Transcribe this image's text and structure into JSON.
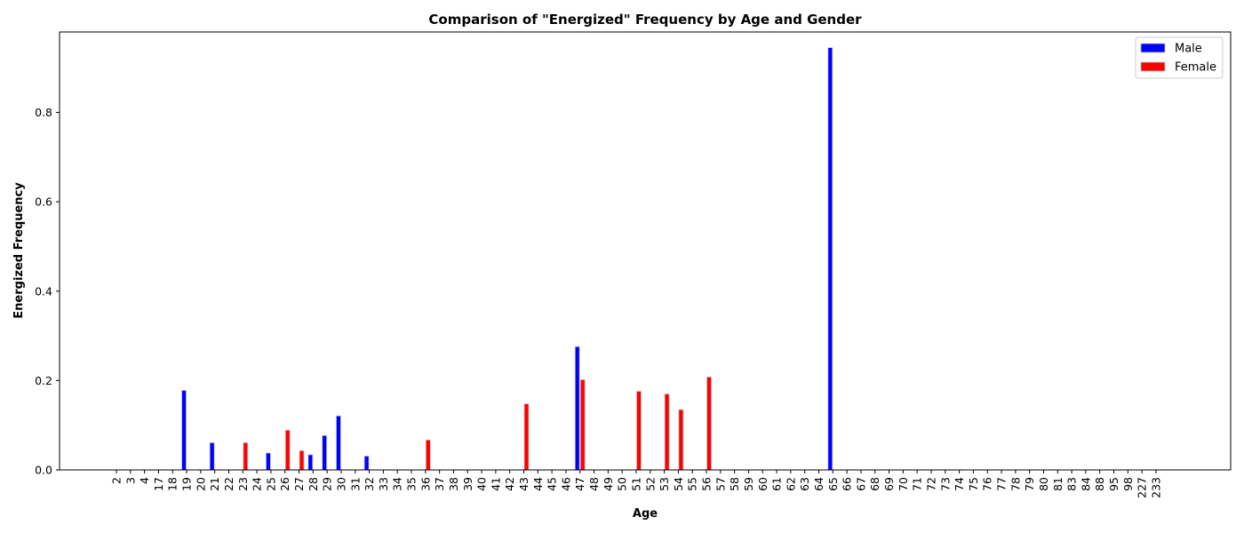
{
  "chart_data": {
    "type": "bar",
    "title": "Comparison of \"Energized\" Frequency by Age and Gender",
    "xlabel": "Age",
    "ylabel": "Energized Frequency",
    "ylim": [
      0,
      0.98
    ],
    "yticks": [
      "0.0",
      "0.2",
      "0.4",
      "0.6",
      "0.8"
    ],
    "ytick_values": [
      0,
      0.2,
      0.4,
      0.6,
      0.8
    ],
    "grid": false,
    "legend_position": "top-right",
    "categories": [
      "2",
      "3",
      "4",
      "17",
      "18",
      "19",
      "20",
      "21",
      "22",
      "23",
      "24",
      "25",
      "26",
      "27",
      "28",
      "29",
      "30",
      "31",
      "32",
      "33",
      "34",
      "35",
      "36",
      "37",
      "38",
      "39",
      "40",
      "41",
      "42",
      "43",
      "44",
      "45",
      "46",
      "47",
      "48",
      "49",
      "50",
      "51",
      "52",
      "53",
      "54",
      "55",
      "56",
      "57",
      "58",
      "59",
      "60",
      "61",
      "62",
      "63",
      "64",
      "65",
      "66",
      "67",
      "68",
      "69",
      "70",
      "71",
      "72",
      "73",
      "74",
      "75",
      "76",
      "77",
      "78",
      "79",
      "80",
      "81",
      "83",
      "84",
      "88",
      "95",
      "98",
      "227",
      "233"
    ],
    "series": [
      {
        "name": "Male",
        "color": "#0000ff",
        "values": [
          0,
          0,
          0,
          0,
          0,
          0.178,
          0,
          0.061,
          0,
          0,
          0,
          0.038,
          0,
          0,
          0.034,
          0.077,
          0.121,
          0,
          0.031,
          0,
          0,
          0,
          0,
          0,
          0,
          0,
          0,
          0,
          0,
          0,
          0,
          0,
          0,
          0.276,
          0,
          0,
          0,
          0,
          0,
          0,
          0,
          0,
          0,
          0,
          0,
          0,
          0,
          0,
          0,
          0,
          0,
          0.945,
          0,
          0,
          0,
          0,
          0,
          0,
          0,
          0,
          0,
          0,
          0,
          0,
          0,
          0,
          0,
          0,
          0,
          0,
          0,
          0,
          0,
          0,
          0
        ]
      },
      {
        "name": "Female",
        "color": "#ff0000",
        "values": [
          0,
          0,
          0,
          0,
          0,
          0,
          0,
          0,
          0,
          0.061,
          0,
          0,
          0.089,
          0.043,
          0,
          0,
          0,
          0,
          0,
          0,
          0,
          0,
          0.067,
          0,
          0,
          0,
          0,
          0,
          0,
          0.148,
          0,
          0,
          0,
          0.202,
          0,
          0,
          0,
          0.176,
          0,
          0.17,
          0.135,
          0,
          0.208,
          0,
          0,
          0,
          0,
          0,
          0,
          0,
          0,
          0,
          0,
          0,
          0,
          0,
          0,
          0,
          0,
          0,
          0,
          0,
          0,
          0,
          0,
          0,
          0,
          0,
          0,
          0,
          0,
          0,
          0,
          0,
          0
        ]
      }
    ]
  }
}
